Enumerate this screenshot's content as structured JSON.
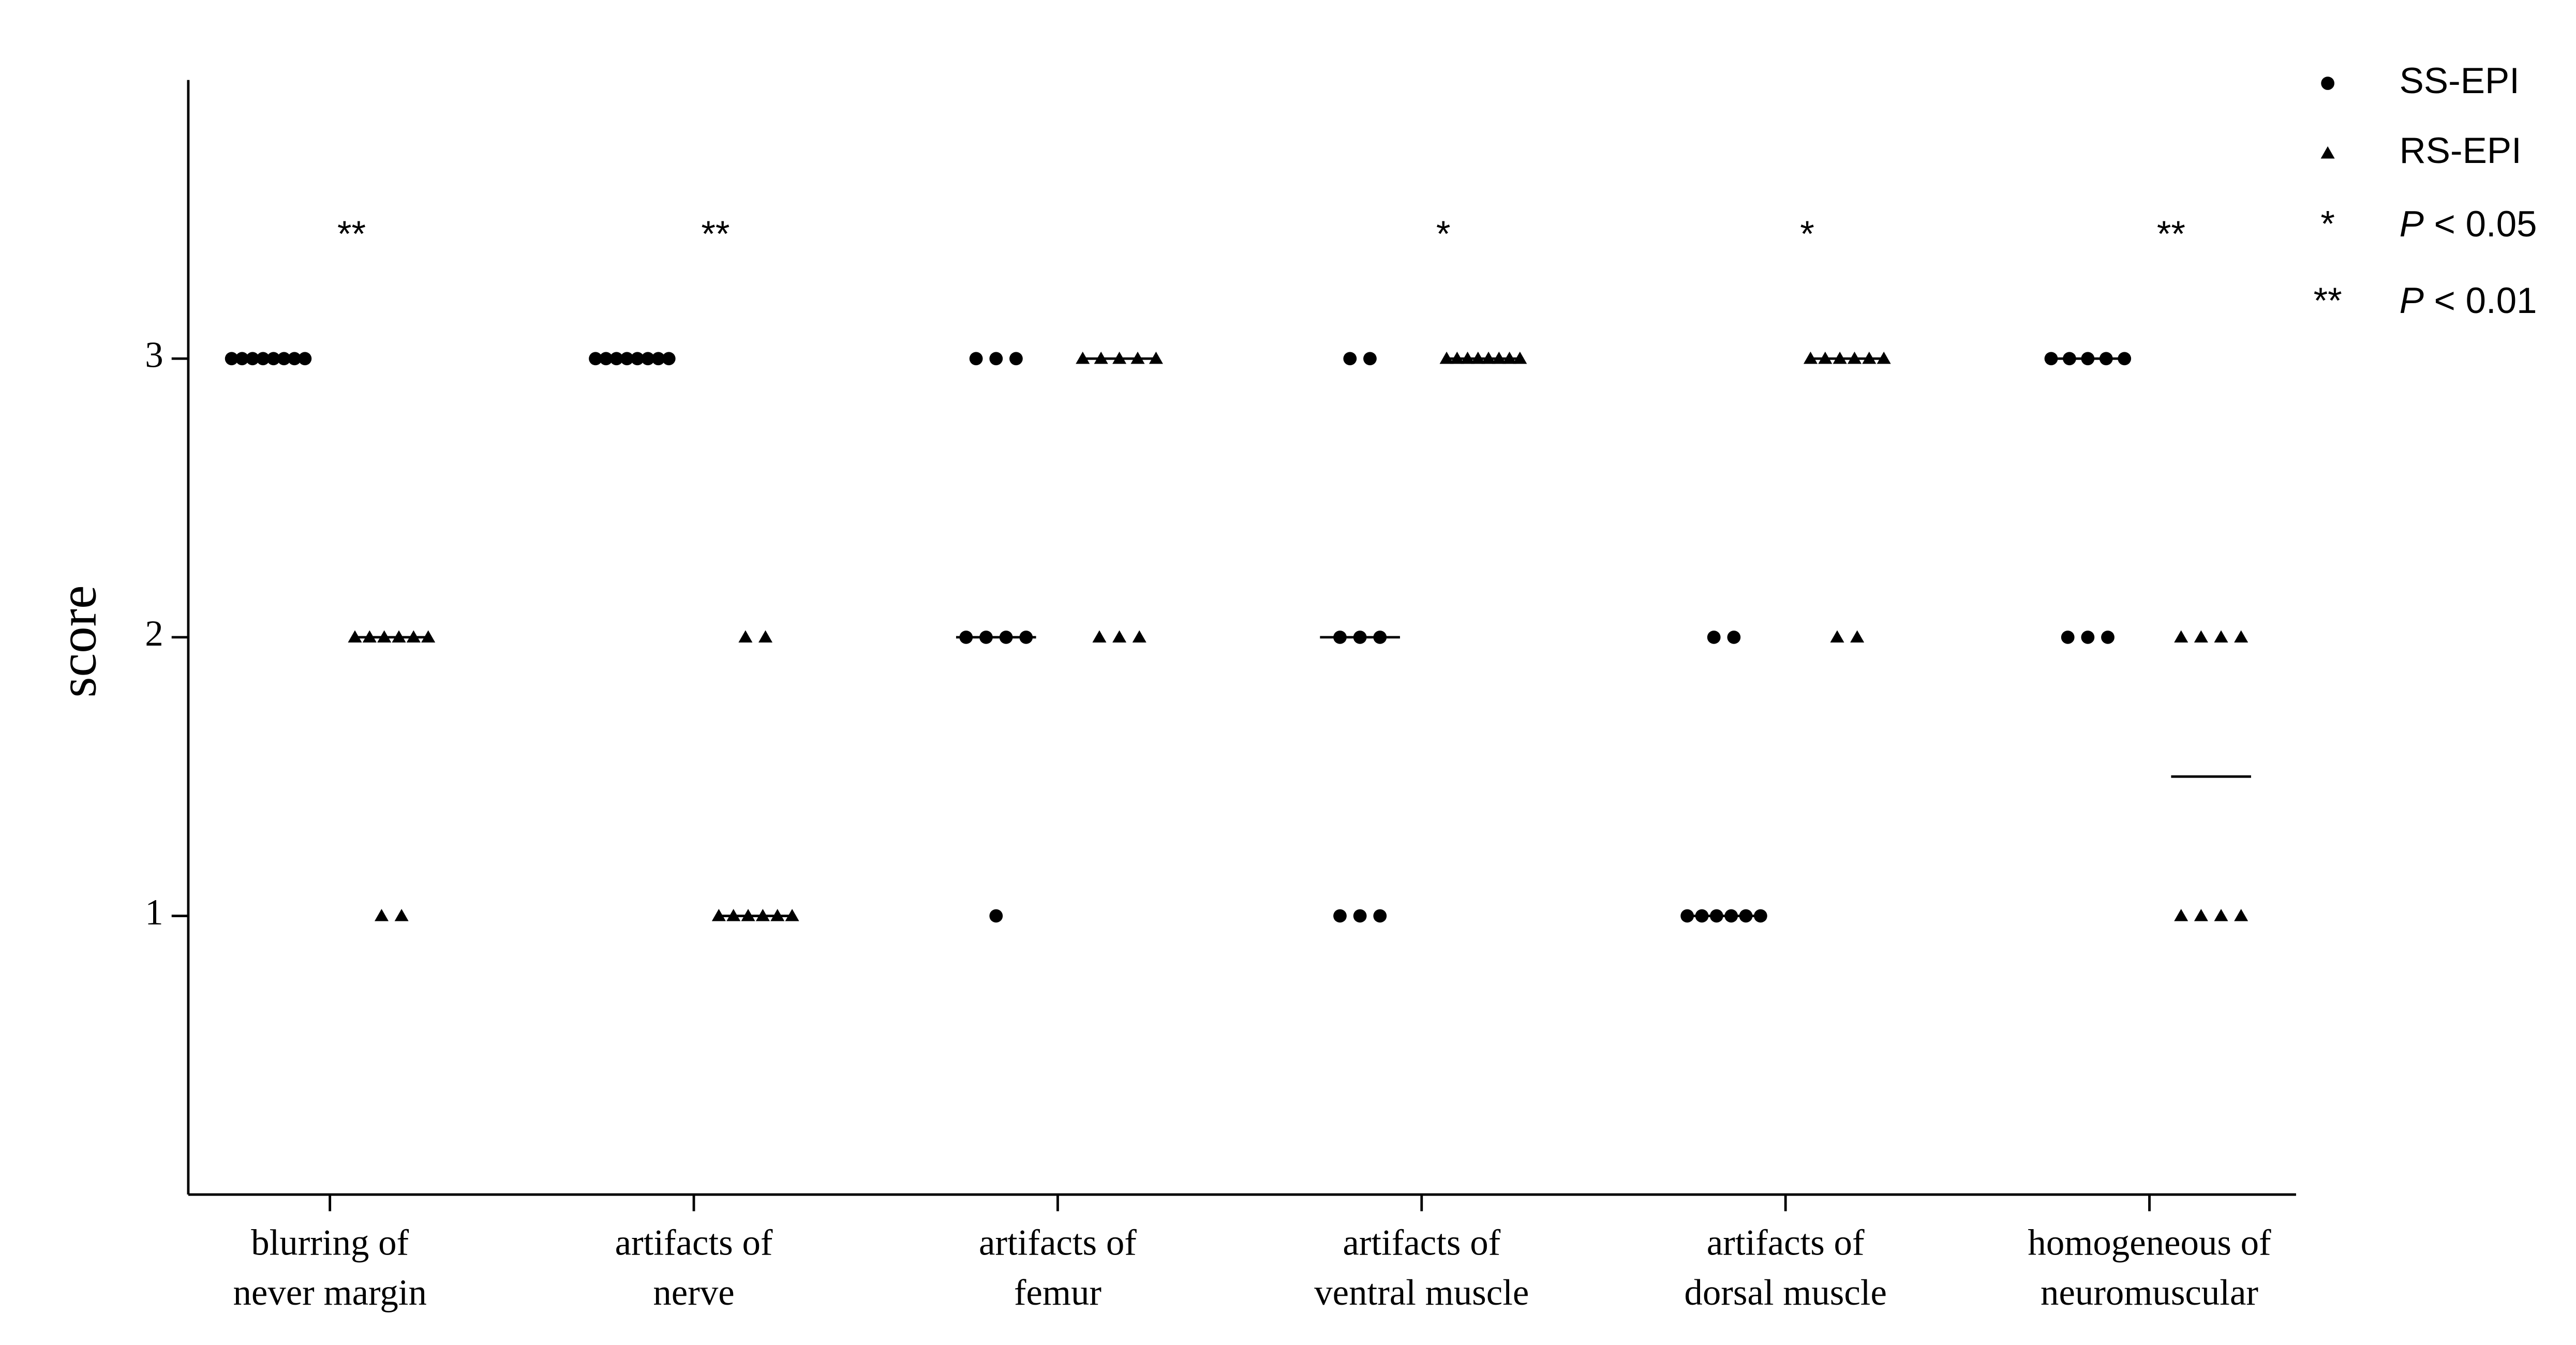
{
  "chart_data": {
    "type": "dot",
    "y_label": "score",
    "categories": [
      [
        "blurring of",
        "never margin"
      ],
      [
        "artifacts of",
        "nerve"
      ],
      [
        "artifacts of",
        "femur"
      ],
      [
        "artifacts of",
        "ventral muscle"
      ],
      [
        "artifacts of",
        "dorsal muscle"
      ],
      [
        "homogeneous of",
        "neuromuscular"
      ]
    ],
    "series": [
      {
        "name": "SS-EPI",
        "color": "#000000",
        "marker": "circle",
        "values": [
          [
            3,
            3,
            3,
            3,
            3,
            3,
            3,
            3
          ],
          [
            3,
            3,
            3,
            3,
            3,
            3,
            3,
            3
          ],
          [
            3,
            3,
            3,
            2,
            2,
            2,
            2,
            1
          ],
          [
            3,
            3,
            2,
            2,
            2,
            1,
            1,
            1
          ],
          [
            2,
            2,
            1,
            1,
            1,
            1,
            1,
            1
          ],
          [
            3,
            3,
            3,
            3,
            3,
            2,
            2,
            2
          ]
        ],
        "medians": [
          3,
          3,
          2,
          2,
          1,
          3
        ]
      },
      {
        "name": "RS-EPI",
        "color": "#000000",
        "marker": "triangle",
        "values": [
          [
            2,
            2,
            2,
            2,
            2,
            2,
            1,
            1
          ],
          [
            2,
            2,
            1,
            1,
            1,
            1,
            1,
            1
          ],
          [
            3,
            3,
            3,
            3,
            3,
            2,
            2,
            2
          ],
          [
            3,
            3,
            3,
            3,
            3,
            3,
            3,
            3
          ],
          [
            3,
            3,
            3,
            3,
            3,
            3,
            2,
            2
          ],
          [
            2,
            2,
            2,
            2,
            1,
            1,
            1,
            1
          ]
        ],
        "medians": [
          2,
          1,
          3,
          3,
          3,
          1.5
        ]
      }
    ],
    "significance": [
      "**",
      "**",
      null,
      "*",
      "*",
      "**"
    ],
    "significance_legend": [
      {
        "symbol": "*",
        "label": [
          "P",
          " < 0.05"
        ]
      },
      {
        "symbol": "**",
        "label": [
          "P",
          " < 0.01"
        ]
      }
    ],
    "ylim": [
      0,
      4
    ],
    "yticks": [
      1,
      2,
      3
    ],
    "legend": "top-right"
  }
}
